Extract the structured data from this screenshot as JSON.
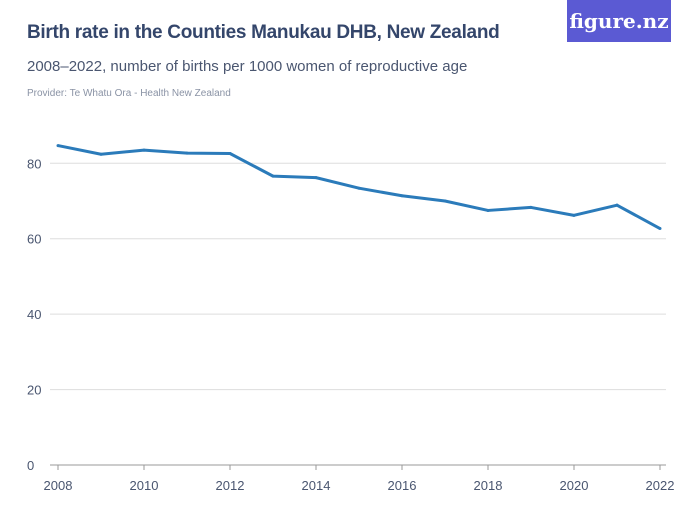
{
  "header": {
    "title": "Birth rate in the Counties Manukau DHB, New Zealand",
    "subtitle": "2008–2022, number of births per 1000 women of reproductive age",
    "provider": "Provider: Te Whatu Ora - Health New Zealand",
    "logo": "figure.nz"
  },
  "colors": {
    "line": "#2b7bba",
    "grid": "#dddddd",
    "logo_bg": "#5b5ad3"
  },
  "chart_data": {
    "type": "line",
    "title": "Birth rate in the Counties Manukau DHB, New Zealand",
    "subtitle": "2008–2022, number of births per 1000 women of reproductive age",
    "x": [
      2008,
      2009,
      2010,
      2011,
      2012,
      2013,
      2014,
      2015,
      2016,
      2017,
      2018,
      2019,
      2020,
      2021,
      2022
    ],
    "series": [
      {
        "values": [
          84.7,
          82.4,
          83.5,
          82.7,
          82.6,
          76.6,
          76.2,
          73.4,
          71.4,
          70.0,
          67.5,
          68.3,
          66.2,
          68.9,
          62.7
        ]
      }
    ],
    "xticks": [
      "2008",
      "2010",
      "2012",
      "2014",
      "2016",
      "2018",
      "2020",
      "2022"
    ],
    "yticks": [
      "0",
      "20",
      "40",
      "60",
      "80"
    ],
    "xlim": [
      2008,
      2022
    ],
    "ylim": [
      0,
      80
    ],
    "grid": true,
    "legend": "none"
  }
}
